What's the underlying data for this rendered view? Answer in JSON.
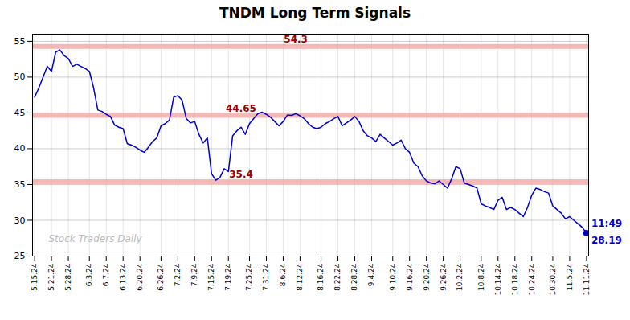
{
  "chart_data": {
    "type": "line",
    "title": "TNDM Long Term Signals",
    "color": "#0000cc",
    "grid": true,
    "ylim": [
      25,
      56
    ],
    "yticks": [
      25,
      30,
      35,
      40,
      45,
      50,
      55
    ],
    "categories": [
      "5.15.24",
      null,
      null,
      null,
      "5.21.24",
      null,
      null,
      null,
      "5.28.24",
      null,
      null,
      null,
      null,
      "6.3.24",
      null,
      null,
      null,
      "6.7.24",
      null,
      null,
      null,
      "6.13.24",
      null,
      null,
      null,
      "6.20.24",
      null,
      null,
      null,
      null,
      "6.26.24",
      null,
      null,
      null,
      "7.2.24",
      null,
      null,
      null,
      "7.9.24",
      null,
      null,
      null,
      "7.15.24",
      null,
      null,
      null,
      "7.19.24",
      null,
      null,
      null,
      null,
      "7.25.24",
      null,
      null,
      null,
      "7.31.24",
      null,
      null,
      null,
      "8.6.24",
      null,
      null,
      null,
      "8.12.24",
      null,
      null,
      null,
      null,
      "8.16.24",
      null,
      null,
      null,
      "8.22.24",
      null,
      null,
      null,
      "8.28.24",
      null,
      null,
      null,
      "9.4.24",
      null,
      null,
      null,
      null,
      "9.10.24",
      null,
      null,
      null,
      "9.16.24",
      null,
      null,
      null,
      "9.20.24",
      null,
      null,
      null,
      "9.26.24",
      null,
      null,
      null,
      "10.2.24",
      null,
      null,
      null,
      null,
      "10.8.24",
      null,
      null,
      null,
      "10.14.24",
      null,
      null,
      null,
      "10.18.24",
      null,
      null,
      null,
      "10.24.24",
      null,
      null,
      null,
      null,
      "10.30.24",
      null,
      null,
      null,
      "11.5.24",
      null,
      null,
      null,
      "11.11.24"
    ],
    "values": [
      47.2,
      48.5,
      50.0,
      51.5,
      50.8,
      53.5,
      53.8,
      53.0,
      52.6,
      51.5,
      51.8,
      51.5,
      51.2,
      50.8,
      48.5,
      45.4,
      45.2,
      44.8,
      44.5,
      43.3,
      43.0,
      42.8,
      40.7,
      40.5,
      40.2,
      39.8,
      39.5,
      40.2,
      41.0,
      41.5,
      43.2,
      43.5,
      44.0,
      47.2,
      47.4,
      46.8,
      44.2,
      43.6,
      43.8,
      42.0,
      40.8,
      41.5,
      36.5,
      35.6,
      36.0,
      37.2,
      36.8,
      41.8,
      42.5,
      43.0,
      42.0,
      43.5,
      44.2,
      44.9,
      45.1,
      44.8,
      44.4,
      43.8,
      43.2,
      43.8,
      44.7,
      44.65,
      44.9,
      44.6,
      44.2,
      43.5,
      43.0,
      42.8,
      43.0,
      43.5,
      43.8,
      44.2,
      44.5,
      43.2,
      43.6,
      44.0,
      44.5,
      43.8,
      42.5,
      41.8,
      41.5,
      41.0,
      42.0,
      41.5,
      41.0,
      40.5,
      40.8,
      41.2,
      40.0,
      39.5,
      38.0,
      37.5,
      36.2,
      35.5,
      35.2,
      35.1,
      35.5,
      35.0,
      34.5,
      35.8,
      37.5,
      37.2,
      35.2,
      35.0,
      34.8,
      34.5,
      32.3,
      32.0,
      31.8,
      31.5,
      32.8,
      33.2,
      31.5,
      31.8,
      31.5,
      31.0,
      30.5,
      31.8,
      33.5,
      34.5,
      34.3,
      34.0,
      33.8,
      32.0,
      31.5,
      31.0,
      30.2,
      30.5,
      30.0,
      29.5,
      29.0,
      28.19
    ],
    "reference_lines": [
      {
        "value": 54.3,
        "color": "#f5aaaa"
      },
      {
        "value": 44.65,
        "color": "#f5aaaa"
      },
      {
        "value": 35.4,
        "color": "#f5aaaa"
      }
    ],
    "annotations": [
      {
        "text": "54.3",
        "y": 54.3,
        "color": "#990000"
      },
      {
        "text": "44.65",
        "y": 44.65,
        "color": "#990000"
      },
      {
        "text": "35.4",
        "y": 35.4,
        "color": "#990000"
      }
    ],
    "end_point": {
      "time": "11:49",
      "value_label": "28.19",
      "color": "#0000cc"
    },
    "watermark": {
      "text": "Stock Traders Daily",
      "color": "#bbbbbb"
    }
  }
}
